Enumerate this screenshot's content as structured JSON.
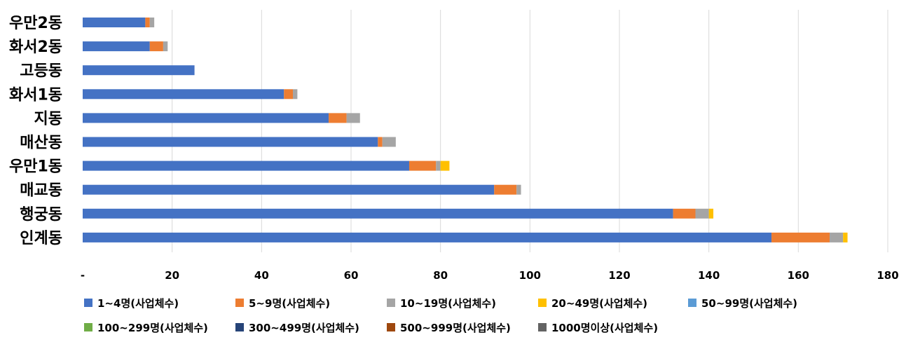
{
  "chart_data": {
    "type": "bar",
    "orientation": "horizontal",
    "stacked": true,
    "categories": [
      "우만2동",
      "화서2동",
      "고등동",
      "화서1동",
      "지동",
      "매산동",
      "우만1동",
      "매교동",
      "행궁동",
      "인계동"
    ],
    "series": [
      {
        "name": "1~4명(사업체수)",
        "color": "#4472C4",
        "values": [
          14,
          15,
          25,
          45,
          55,
          66,
          73,
          92,
          132,
          154
        ]
      },
      {
        "name": "5~9명(사업체수)",
        "color": "#ED7D31",
        "values": [
          1,
          3,
          0,
          2,
          4,
          1,
          6,
          5,
          5,
          13
        ]
      },
      {
        "name": "10~19명(사업체수)",
        "color": "#A5A5A5",
        "values": [
          1,
          1,
          0,
          1,
          3,
          3,
          1,
          1,
          3,
          3
        ]
      },
      {
        "name": "20~49명(사업체수)",
        "color": "#FFC000",
        "values": [
          0,
          0,
          0,
          0,
          0,
          0,
          2,
          0,
          1,
          1
        ]
      },
      {
        "name": "50~99명(사업체수)",
        "color": "#5B9BD5",
        "values": [
          0,
          0,
          0,
          0,
          0,
          0,
          0,
          0,
          0,
          0
        ]
      },
      {
        "name": "100~299명(사업체수)",
        "color": "#70AD47",
        "values": [
          0,
          0,
          0,
          0,
          0,
          0,
          0,
          0,
          0,
          0
        ]
      },
      {
        "name": "300~499명(사업체수)",
        "color": "#264478",
        "values": [
          0,
          0,
          0,
          0,
          0,
          0,
          0,
          0,
          0,
          0
        ]
      },
      {
        "name": "500~999명(사업체수)",
        "color": "#9E480E",
        "values": [
          0,
          0,
          0,
          0,
          0,
          0,
          0,
          0,
          0,
          0
        ]
      },
      {
        "name": "1000명이상(사업체수)",
        "color": "#636363",
        "values": [
          0,
          0,
          0,
          0,
          0,
          0,
          0,
          0,
          0,
          0
        ]
      }
    ],
    "x_ticks": [
      "-",
      "20",
      "40",
      "60",
      "80",
      "100",
      "120",
      "140",
      "160",
      "180"
    ],
    "xlim": [
      0,
      180
    ],
    "grid": "vertical",
    "legend_position": "bottom",
    "title": "",
    "xlabel": "",
    "ylabel": ""
  }
}
